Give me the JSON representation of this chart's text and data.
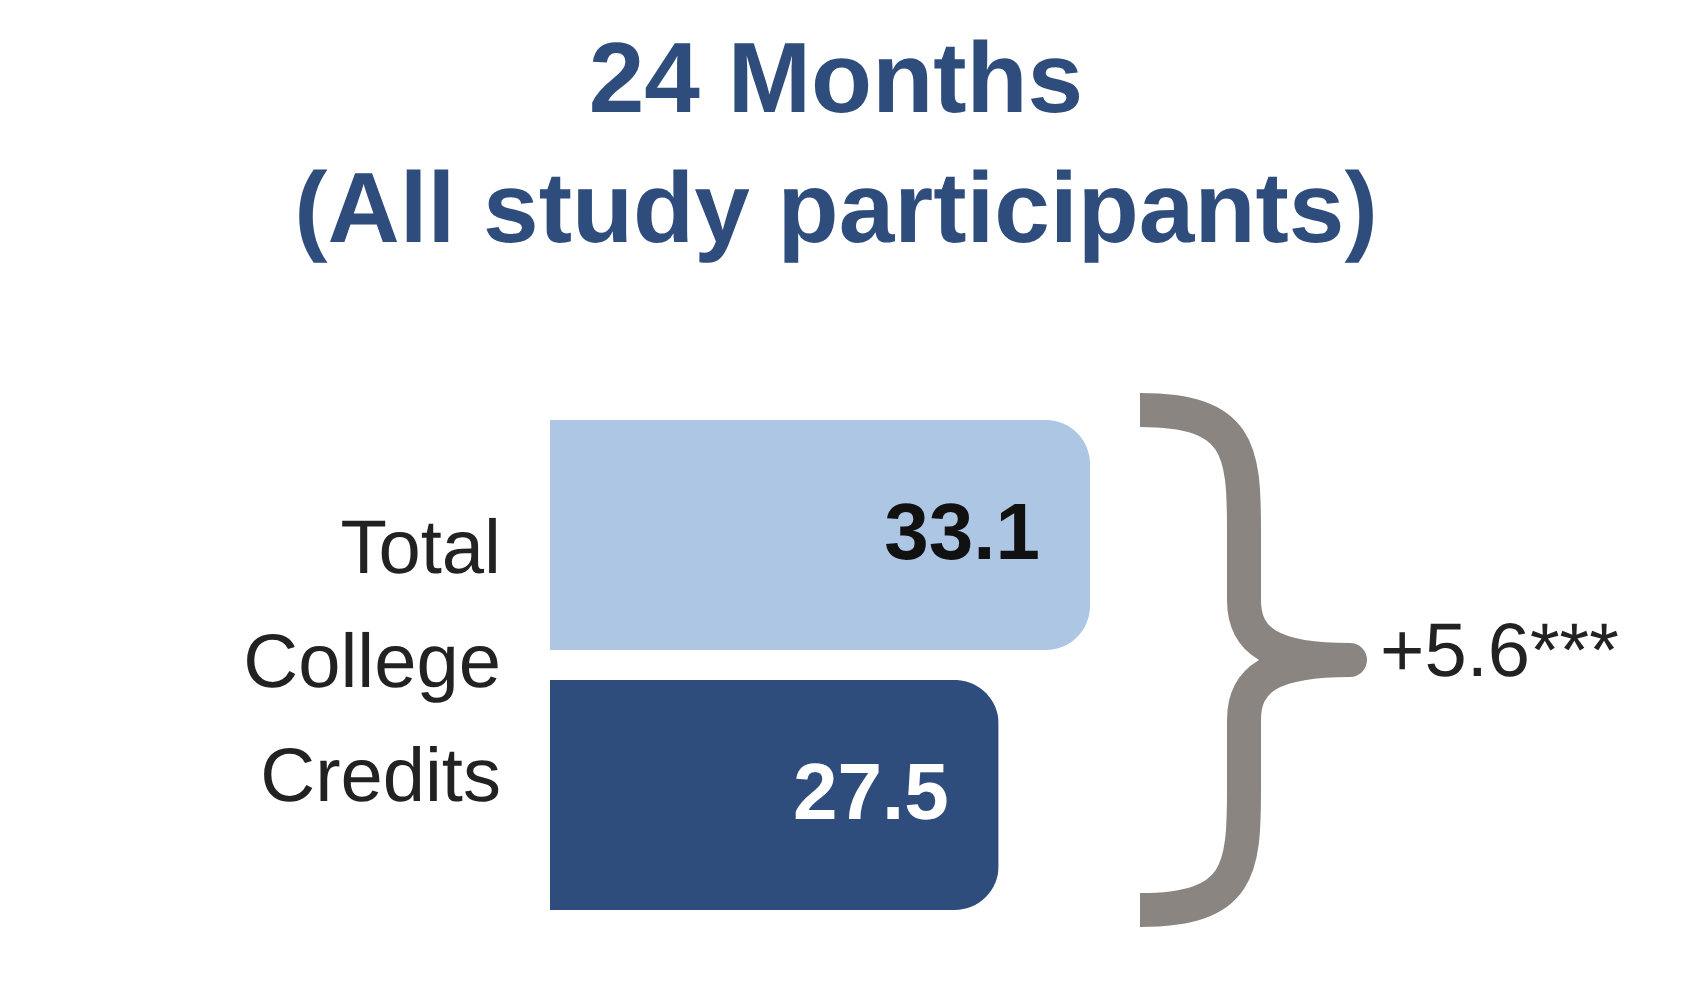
{
  "chart_data": {
    "type": "bar",
    "orientation": "horizontal",
    "title": "24 Months",
    "subtitle": "(All study participants)",
    "categories": [
      "Total College Credits"
    ],
    "series": [
      {
        "color": "#adc6e4",
        "values": [
          33.1
        ]
      },
      {
        "color": "#2f4d7c",
        "values": [
          27.5
        ]
      }
    ],
    "data_labels": true,
    "annotations": [
      "+5.6***"
    ]
  }
}
